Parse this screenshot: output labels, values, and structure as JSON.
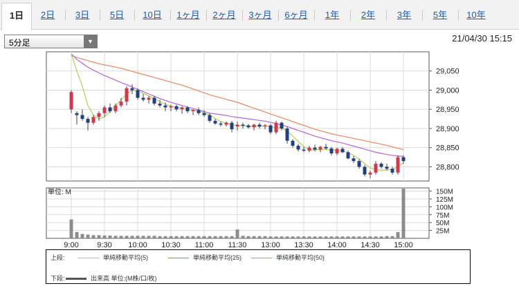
{
  "tabs": [
    {
      "label": "1日",
      "active": true
    },
    {
      "label": "2日"
    },
    {
      "label": "3日"
    },
    {
      "label": "5日"
    },
    {
      "label": "10日"
    },
    {
      "label": "1ヶ月"
    },
    {
      "label": "2ヶ月"
    },
    {
      "label": "3ヶ月"
    },
    {
      "label": "6ヶ月"
    },
    {
      "label": "1年"
    },
    {
      "label": "2年"
    },
    {
      "label": "3年"
    },
    {
      "label": "5年"
    },
    {
      "label": "10年"
    }
  ],
  "interval_select": {
    "value": "5分足"
  },
  "timestamp": "21/04/30 15:15",
  "colors": {
    "up": "#d9344a",
    "down": "#1f3f87",
    "ma5": "#b5cc5a",
    "ma25": "#b763d8",
    "ma50": "#e8875e",
    "volume": "#8c8c8c",
    "grid": "#d9d9d9"
  },
  "chart_data": [
    {
      "type": "candlestick",
      "y_ticks": [
        28800,
        28850,
        28900,
        28950,
        29000,
        29050
      ],
      "y_tick_labels": [
        "28,800",
        "28,850",
        "28,900",
        "28,950",
        "29,000",
        "29,050"
      ],
      "ylim": [
        28763,
        29100
      ],
      "x_labels": [
        "9:00",
        "9:30",
        "10:00",
        "10:30",
        "11:00",
        "11:30",
        "13:00",
        "13:30",
        "14:00",
        "14:30",
        "15:00"
      ],
      "sessions": [
        {
          "start": "9:00",
          "bars": 30
        },
        {
          "start": "12:30",
          "bars": 31
        }
      ],
      "candles": [
        [
          28950,
          29000,
          28940,
          28995
        ],
        [
          28940,
          28945,
          28910,
          28935
        ],
        [
          28935,
          28950,
          28920,
          28925
        ],
        [
          28925,
          28930,
          28895,
          28915
        ],
        [
          28915,
          28935,
          28910,
          28930
        ],
        [
          28930,
          28945,
          28920,
          28940
        ],
        [
          28940,
          28960,
          28930,
          28955
        ],
        [
          28955,
          28965,
          28940,
          28945
        ],
        [
          28945,
          28965,
          28940,
          28960
        ],
        [
          28960,
          28980,
          28955,
          28970
        ],
        [
          28970,
          29010,
          28960,
          29005
        ],
        [
          29005,
          29015,
          28990,
          29000
        ],
        [
          29000,
          29005,
          28975,
          28980
        ],
        [
          28980,
          28990,
          28970,
          28975
        ],
        [
          28975,
          28985,
          28965,
          28980
        ],
        [
          28980,
          28985,
          28960,
          28965
        ],
        [
          28965,
          28975,
          28955,
          28960
        ],
        [
          28960,
          28968,
          28945,
          28955
        ],
        [
          28955,
          28962,
          28945,
          28958
        ],
        [
          28958,
          28962,
          28945,
          28950
        ],
        [
          28950,
          28958,
          28938,
          28955
        ],
        [
          28955,
          28958,
          28940,
          28945
        ],
        [
          28945,
          28950,
          28935,
          28948
        ],
        [
          28948,
          28955,
          28935,
          28940
        ],
        [
          28940,
          28948,
          28930,
          28935
        ],
        [
          28935,
          28940,
          28915,
          28920
        ],
        [
          28920,
          28925,
          28910,
          28913
        ],
        [
          28913,
          28918,
          28905,
          28910
        ],
        [
          28910,
          28918,
          28905,
          28915
        ],
        [
          28915,
          28920,
          28890,
          28898
        ],
        [
          28905,
          28918,
          28895,
          28910
        ],
        [
          28910,
          28915,
          28900,
          28908
        ],
        [
          28908,
          28912,
          28900,
          28903
        ],
        [
          28903,
          28912,
          28895,
          28910
        ],
        [
          28910,
          28915,
          28900,
          28905
        ],
        [
          28905,
          28912,
          28898,
          28908
        ],
        [
          28908,
          28912,
          28885,
          28890
        ],
        [
          28890,
          28920,
          28885,
          28915
        ],
        [
          28915,
          28918,
          28895,
          28900
        ],
        [
          28900,
          28905,
          28860,
          28868
        ],
        [
          28868,
          28872,
          28850,
          28855
        ],
        [
          28855,
          28860,
          28840,
          28845
        ],
        [
          28845,
          28852,
          28838,
          28842
        ],
        [
          28842,
          28855,
          28838,
          28850
        ],
        [
          28850,
          28858,
          28840,
          28845
        ],
        [
          28845,
          28855,
          28838,
          28852
        ],
        [
          28852,
          28860,
          28845,
          28848
        ],
        [
          28848,
          28852,
          28830,
          28835
        ],
        [
          28835,
          28850,
          28830,
          28847
        ],
        [
          28847,
          28852,
          28836,
          28838
        ],
        [
          28838,
          28842,
          28820,
          28822
        ],
        [
          28822,
          28828,
          28810,
          28815
        ],
        [
          28815,
          28820,
          28795,
          28800
        ],
        [
          28800,
          28805,
          28775,
          28780
        ],
        [
          28780,
          28790,
          28770,
          28785
        ],
        [
          28785,
          28815,
          28780,
          28808
        ],
        [
          28808,
          28812,
          28795,
          28800
        ],
        [
          28800,
          28808,
          28790,
          28795
        ],
        [
          28795,
          28800,
          28780,
          28785
        ],
        [
          28785,
          28830,
          28780,
          28825
        ],
        [
          28825,
          28830,
          28808,
          28815
        ]
      ],
      "ma5": [
        29095,
        29050,
        29010,
        28960,
        28935,
        28925,
        28930,
        28945,
        28960,
        28975,
        28990,
        29000,
        28998,
        28992,
        28985,
        28978,
        28970,
        28963,
        28958,
        28955,
        28953,
        28950,
        28948,
        28945,
        28941,
        28935,
        28926,
        28918,
        28914,
        28909,
        28908,
        28907,
        28906,
        28905,
        28906,
        28907,
        28905,
        28902,
        28901,
        28893,
        28880,
        28866,
        28853,
        28845,
        28844,
        28845,
        28845,
        28844,
        28843,
        28842,
        28837,
        28830,
        28820,
        28808,
        28797,
        28793,
        28791,
        28792,
        28793,
        28800,
        28810
      ],
      "ma25": [
        29095,
        29080,
        29070,
        29060,
        29052,
        29045,
        29038,
        29032,
        29026,
        29020,
        29014,
        29008,
        29002,
        28996,
        28990,
        28984,
        28978,
        28973,
        28968,
        28964,
        28960,
        28956,
        28952,
        28948,
        28944,
        28940,
        28938,
        28936,
        28934,
        28931,
        28929,
        28927,
        28925,
        28923,
        28921,
        28919,
        28916,
        28913,
        28909,
        28905,
        28900,
        28895,
        28890,
        28885,
        28880,
        28876,
        28872,
        28868,
        28865,
        28862,
        28858,
        28854,
        28850,
        28846,
        28842,
        28838,
        28835,
        28832,
        28830,
        28828,
        28827
      ],
      "ma50": [
        29090,
        29085,
        29081,
        29077,
        29073,
        29069,
        29066,
        29063,
        29060,
        29057,
        29053,
        29049,
        29045,
        29041,
        29037,
        29033,
        29029,
        29025,
        29021,
        29017,
        29013,
        29008,
        29003,
        28998,
        28993,
        28988,
        28984,
        28980,
        28976,
        28972,
        28968,
        28963,
        28958,
        28953,
        28948,
        28943,
        28938,
        28933,
        28928,
        28923,
        28918,
        28913,
        28908,
        28903,
        28898,
        28894,
        28890,
        28886,
        28883,
        28880,
        28877,
        28874,
        28871,
        28868,
        28865,
        28862,
        28859,
        28856,
        28852,
        28848,
        28845
      ]
    },
    {
      "type": "bar",
      "title": "単位: M",
      "y_ticks": [
        25,
        50,
        75,
        100,
        125,
        150
      ],
      "y_tick_labels": [
        "25M",
        "50M",
        "75M",
        "100M",
        "125M",
        "150M"
      ],
      "ylim": [
        0,
        160
      ],
      "values": [
        60,
        20,
        14,
        12,
        10,
        10,
        9,
        9,
        8,
        8,
        8,
        8,
        8,
        8,
        8,
        8,
        7,
        7,
        7,
        7,
        7,
        7,
        7,
        7,
        7,
        7,
        7,
        7,
        7,
        7,
        28,
        8,
        7,
        7,
        7,
        7,
        6,
        6,
        6,
        6,
        6,
        6,
        6,
        6,
        6,
        6,
        6,
        6,
        6,
        6,
        6,
        6,
        6,
        6,
        6,
        6,
        6,
        7,
        7,
        20,
        158
      ]
    }
  ],
  "legend": {
    "upper_label": "上段:",
    "lower_label": "下段:",
    "ma5": "単純移動平均(5)",
    "ma25": "単純移動平均(25)",
    "ma50": "単純移動平均(50)",
    "volume": "出来高 単位:(M株/口/枚)"
  }
}
